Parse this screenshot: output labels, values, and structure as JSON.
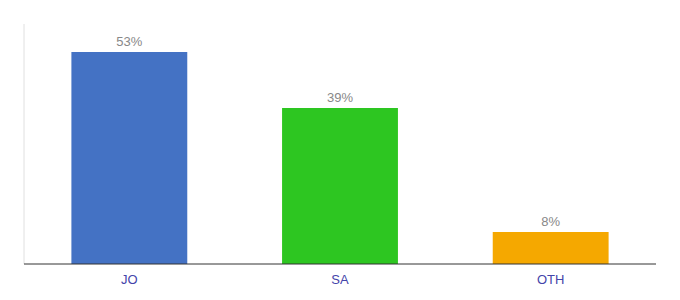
{
  "chart_data": {
    "type": "bar",
    "categories": [
      "JO",
      "SA",
      "OTH"
    ],
    "values": [
      53,
      39,
      8
    ],
    "value_labels": [
      "53%",
      "39%",
      "8%"
    ],
    "colors": [
      "#4472c4",
      "#2dc621",
      "#f5a800"
    ],
    "ylim": [
      0,
      60
    ],
    "data_labels": true,
    "tick_labels": "x",
    "grid": false
  }
}
